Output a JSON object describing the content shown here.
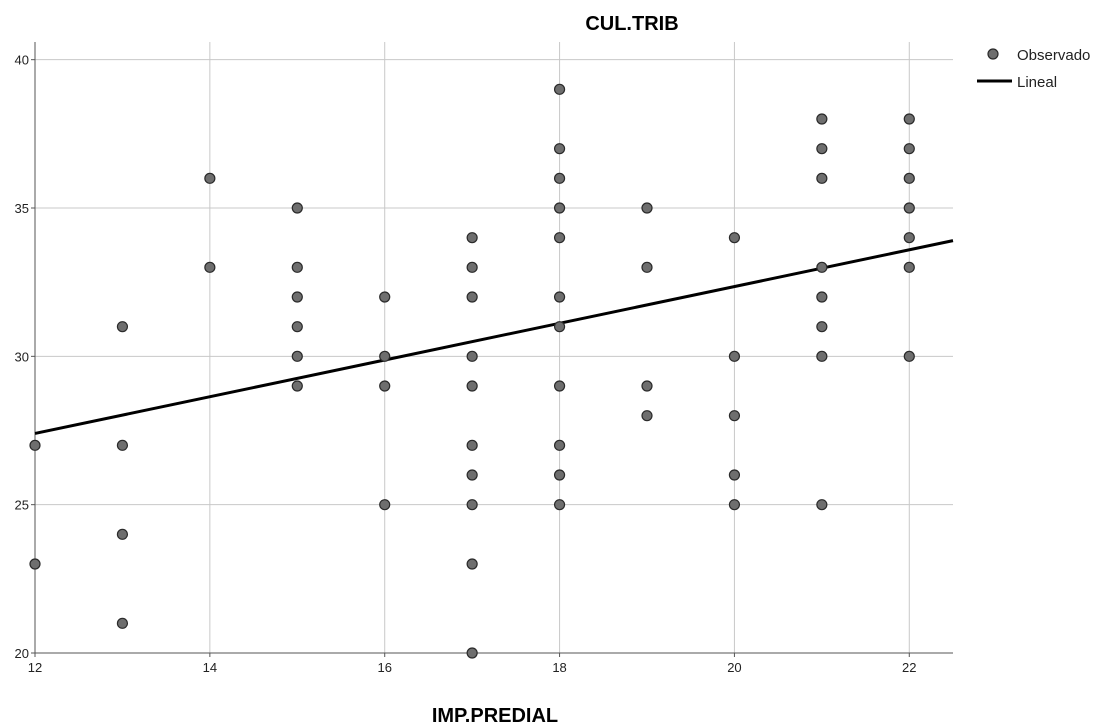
{
  "chart_data": {
    "type": "scatter",
    "title": "CUL.TRIB",
    "xlabel": "IMP.PREDIAL",
    "ylabel": "",
    "xlim": [
      12,
      22.5
    ],
    "ylim": [
      20,
      41
    ],
    "x_ticks": [
      12,
      14,
      16,
      18,
      20,
      22
    ],
    "y_ticks": [
      20,
      25,
      30,
      35,
      40
    ],
    "grid": true,
    "legend_position": "top-right",
    "colors": {
      "points": "#6e6e6e",
      "point_edge": "#2a2a2a",
      "fit_line": "#000000",
      "grid": "#c8c8c8",
      "axis": "#555555"
    },
    "series": [
      {
        "name": "Observado",
        "type": "scatter",
        "points": [
          [
            12,
            27
          ],
          [
            12,
            23
          ],
          [
            13,
            31
          ],
          [
            13,
            27
          ],
          [
            13,
            24
          ],
          [
            13,
            21
          ],
          [
            14,
            36
          ],
          [
            14,
            33
          ],
          [
            15,
            35
          ],
          [
            15,
            33
          ],
          [
            15,
            32
          ],
          [
            15,
            31
          ],
          [
            15,
            30
          ],
          [
            15,
            29
          ],
          [
            16,
            32
          ],
          [
            16,
            30
          ],
          [
            16,
            29
          ],
          [
            16,
            25
          ],
          [
            17,
            34
          ],
          [
            17,
            33
          ],
          [
            17,
            32
          ],
          [
            17,
            30
          ],
          [
            17,
            29
          ],
          [
            17,
            27
          ],
          [
            17,
            26
          ],
          [
            17,
            25
          ],
          [
            17,
            23
          ],
          [
            17,
            20
          ],
          [
            18,
            39
          ],
          [
            18,
            37
          ],
          [
            18,
            36
          ],
          [
            18,
            35
          ],
          [
            18,
            34
          ],
          [
            18,
            32
          ],
          [
            18,
            31
          ],
          [
            18,
            29
          ],
          [
            18,
            27
          ],
          [
            18,
            26
          ],
          [
            18,
            25
          ],
          [
            19,
            35
          ],
          [
            19,
            33
          ],
          [
            19,
            29
          ],
          [
            19,
            28
          ],
          [
            20,
            34
          ],
          [
            20,
            30
          ],
          [
            20,
            28
          ],
          [
            20,
            26
          ],
          [
            20,
            25
          ],
          [
            21,
            38
          ],
          [
            21,
            37
          ],
          [
            21,
            36
          ],
          [
            21,
            33
          ],
          [
            21,
            32
          ],
          [
            21,
            31
          ],
          [
            21,
            30
          ],
          [
            21,
            25
          ],
          [
            22,
            38
          ],
          [
            22,
            37
          ],
          [
            22,
            36
          ],
          [
            22,
            35
          ],
          [
            22,
            34
          ],
          [
            22,
            33
          ],
          [
            22,
            30
          ]
        ]
      },
      {
        "name": "Lineal",
        "type": "line",
        "x": [
          12,
          22.5
        ],
        "y": [
          27.4,
          33.9
        ]
      }
    ]
  }
}
